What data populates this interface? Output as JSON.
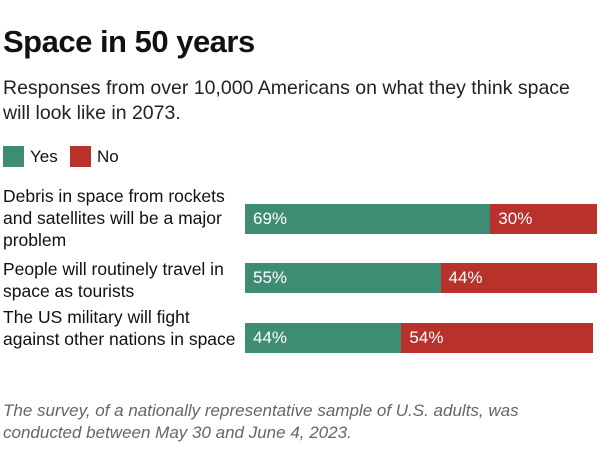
{
  "title": "Space in 50 years",
  "subtitle": "Responses from over 10,000 Americans on what they think space will look like in 2073.",
  "note": "The survey, of a nationally representative sample of U.S. adults, was conducted between May 30 and June 4, 2023.",
  "chart_data": {
    "type": "bar",
    "orientation": "horizontal-stacked",
    "categories": [
      "Debris in space from rockets and satellites will be a major problem",
      "People will routinely travel in space as tourists",
      "The US military will fight against other nations in space"
    ],
    "series": [
      {
        "name": "Yes",
        "color": "#3f8c75",
        "values": [
          69,
          55,
          44
        ],
        "labels": [
          "69%",
          "55%",
          "44%"
        ]
      },
      {
        "name": "No",
        "color": "#b8312b",
        "values": [
          30,
          44,
          54
        ],
        "labels": [
          "30%",
          "44%",
          "54%"
        ]
      }
    ],
    "xlim": [
      0,
      100
    ],
    "legend": "top-left"
  }
}
